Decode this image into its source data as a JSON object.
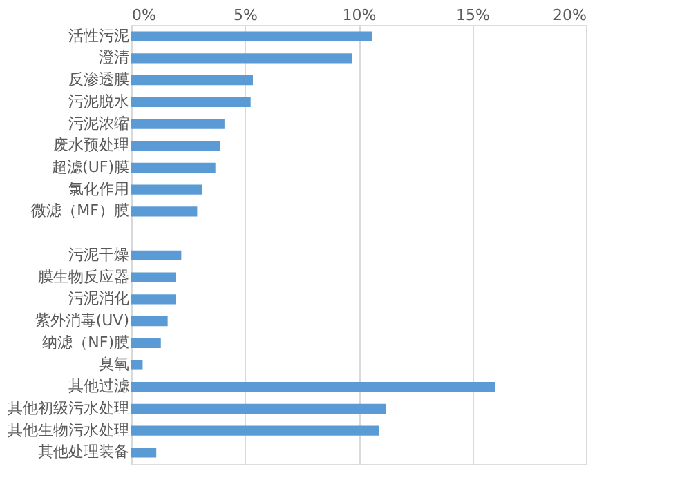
{
  "chart_data": {
    "type": "bar",
    "orientation": "horizontal",
    "categories": [
      "活性污泥",
      "澄清",
      "反渗透膜",
      "污泥脱水",
      "污泥浓缩",
      "废水预处理",
      "超滤(UF)膜",
      "氯化作用",
      "微滤（MF）膜",
      null,
      "污泥干燥",
      "膜生物反应器",
      "污泥消化",
      "紫外消毒(UV)",
      "纳滤（NF)膜",
      "臭氧",
      "其他过滤",
      "其他初级污水处理",
      "其他生物污水处理",
      "其他处理装备"
    ],
    "values": [
      10.6,
      9.7,
      5.35,
      5.25,
      4.1,
      3.9,
      3.7,
      3.1,
      2.9,
      null,
      2.2,
      1.95,
      1.95,
      1.6,
      1.3,
      0.5,
      16.0,
      11.2,
      10.9,
      1.1
    ],
    "color": "#5b9bd5",
    "xlim": [
      0,
      20
    ],
    "xticks": [
      {
        "value": 0,
        "label": "0%"
      },
      {
        "value": 5,
        "label": "5%"
      },
      {
        "value": 10,
        "label": "10%"
      },
      {
        "value": 15,
        "label": "15%"
      },
      {
        "value": 20,
        "label": "20%"
      }
    ],
    "grid": "x"
  }
}
